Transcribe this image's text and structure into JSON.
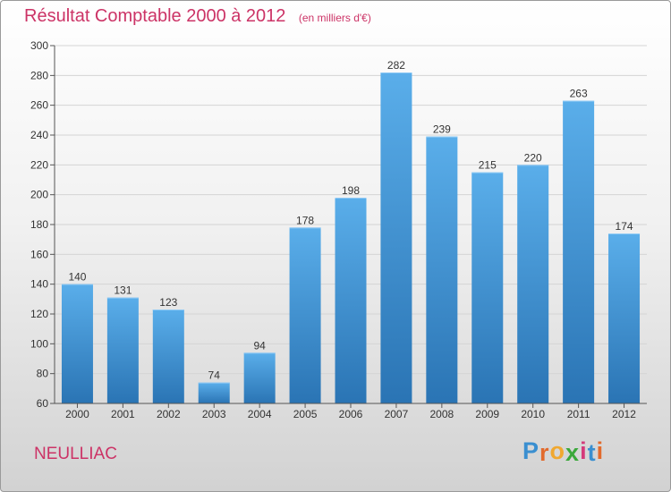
{
  "header": {
    "title": "Résultat Comptable 2000 à 2012",
    "subtitle": "(en milliers d'€)"
  },
  "footer": {
    "place": "NEULLIAC",
    "logo_text": "Proxiti",
    "logo_letters": [
      "P",
      "r",
      "o",
      "x",
      "i",
      "t",
      "i"
    ],
    "logo_colors": [
      "#3a8fd0",
      "#e26a2c",
      "#f0a830",
      "#3aa83a",
      "#d43a7a",
      "#3a8fd0",
      "#e26a2c"
    ]
  },
  "colors": {
    "title": "#cc3366",
    "bar_top": "#5aaeea",
    "bar_bottom": "#2a74b4"
  },
  "chart_data": {
    "type": "bar",
    "title": "Résultat Comptable 2000 à 2012",
    "subtitle": "(en milliers d'€)",
    "categories": [
      "2000",
      "2001",
      "2002",
      "2003",
      "2004",
      "2005",
      "2006",
      "2007",
      "2008",
      "2009",
      "2010",
      "2011",
      "2012"
    ],
    "values": [
      140,
      131,
      123,
      74,
      94,
      178,
      198,
      282,
      239,
      215,
      220,
      263,
      174
    ],
    "value_labels": [
      "140",
      "131",
      "123",
      "74",
      "94",
      "178",
      "198",
      "282",
      "239",
      "215",
      "220",
      "263",
      "174"
    ],
    "ylim": [
      60,
      300
    ],
    "yticks": [
      60,
      80,
      100,
      120,
      140,
      160,
      180,
      200,
      220,
      240,
      260,
      280,
      300
    ],
    "ytick_labels": [
      "60",
      "80",
      "100",
      "120",
      "140",
      "160",
      "180",
      "200",
      "220",
      "240",
      "260",
      "280",
      "300"
    ],
    "grid": true,
    "xlabel": "",
    "ylabel": ""
  }
}
